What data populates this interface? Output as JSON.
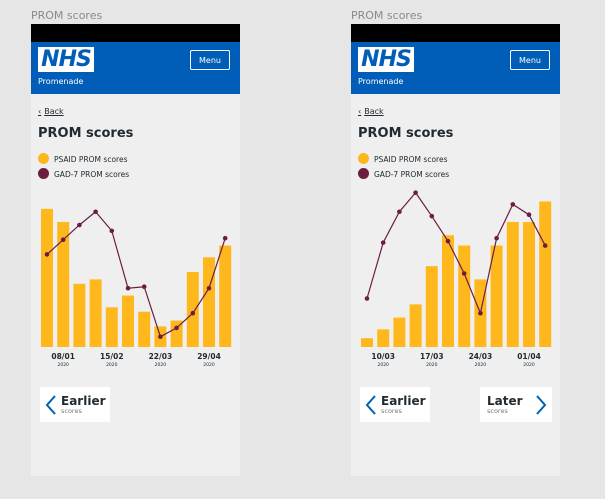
{
  "screens": [
    {
      "frame_label": "PROM scores",
      "logo": "NHS",
      "org": "Promenade",
      "menu": "Menu",
      "back": "Back",
      "title": "PROM scores",
      "chart_data": {
        "type": "bar_line",
        "categories": [
          null,
          "08/01",
          null,
          null,
          "15/02",
          null,
          null,
          "22/03",
          null,
          null,
          "29/04",
          null
        ],
        "category_sublabels": [
          null,
          "2020",
          null,
          null,
          "2020",
          null,
          null,
          "2020",
          null,
          null,
          "2020",
          null
        ],
        "ylim": [
          0,
          110
        ],
        "series": [
          {
            "name": "PSAID PROM scores",
            "type": "bar",
            "color": "#ffb81c",
            "values": [
              94,
              85,
              43,
              46,
              27,
              35,
              24,
              14,
              18,
              51,
              61,
              69
            ]
          },
          {
            "name": "GAD-7 PROM scores",
            "type": "line",
            "color": "#6b1d44",
            "values": [
              63,
              73,
              83,
              92,
              79,
              40,
              41,
              7,
              13,
              23,
              40,
              74
            ]
          }
        ]
      },
      "buttons": [
        {
          "label": "Earlier",
          "sublabel": "scores",
          "direction": "left"
        }
      ]
    },
    {
      "frame_label": "PROM scores",
      "logo": "NHS",
      "org": "Promenade",
      "menu": "Menu",
      "back": "Back",
      "title": "PROM scores",
      "chart_data": {
        "type": "bar_line",
        "categories": [
          null,
          "10/03",
          null,
          null,
          "17/03",
          null,
          null,
          "24/03",
          null,
          null,
          "01/04",
          null
        ],
        "category_sublabels": [
          null,
          "2020",
          null,
          null,
          "2020",
          null,
          null,
          "2020",
          null,
          null,
          "2020",
          null
        ],
        "ylim": [
          0,
          110
        ],
        "series": [
          {
            "name": "PSAID PROM scores",
            "type": "bar",
            "color": "#ffb81c",
            "values": [
              6,
              12,
              20,
              29,
              55,
              76,
              69,
              46,
              69,
              85,
              85,
              99
            ]
          },
          {
            "name": "GAD-7 PROM scores",
            "type": "line",
            "color": "#6b1d44",
            "values": [
              33,
              71,
              92,
              105,
              89,
              72,
              50,
              23,
              74,
              97,
              90,
              69
            ]
          }
        ]
      },
      "buttons": [
        {
          "label": "Earlier",
          "sublabel": "scores",
          "direction": "left"
        },
        {
          "label": "Later",
          "sublabel": "scores",
          "direction": "right"
        }
      ]
    }
  ]
}
